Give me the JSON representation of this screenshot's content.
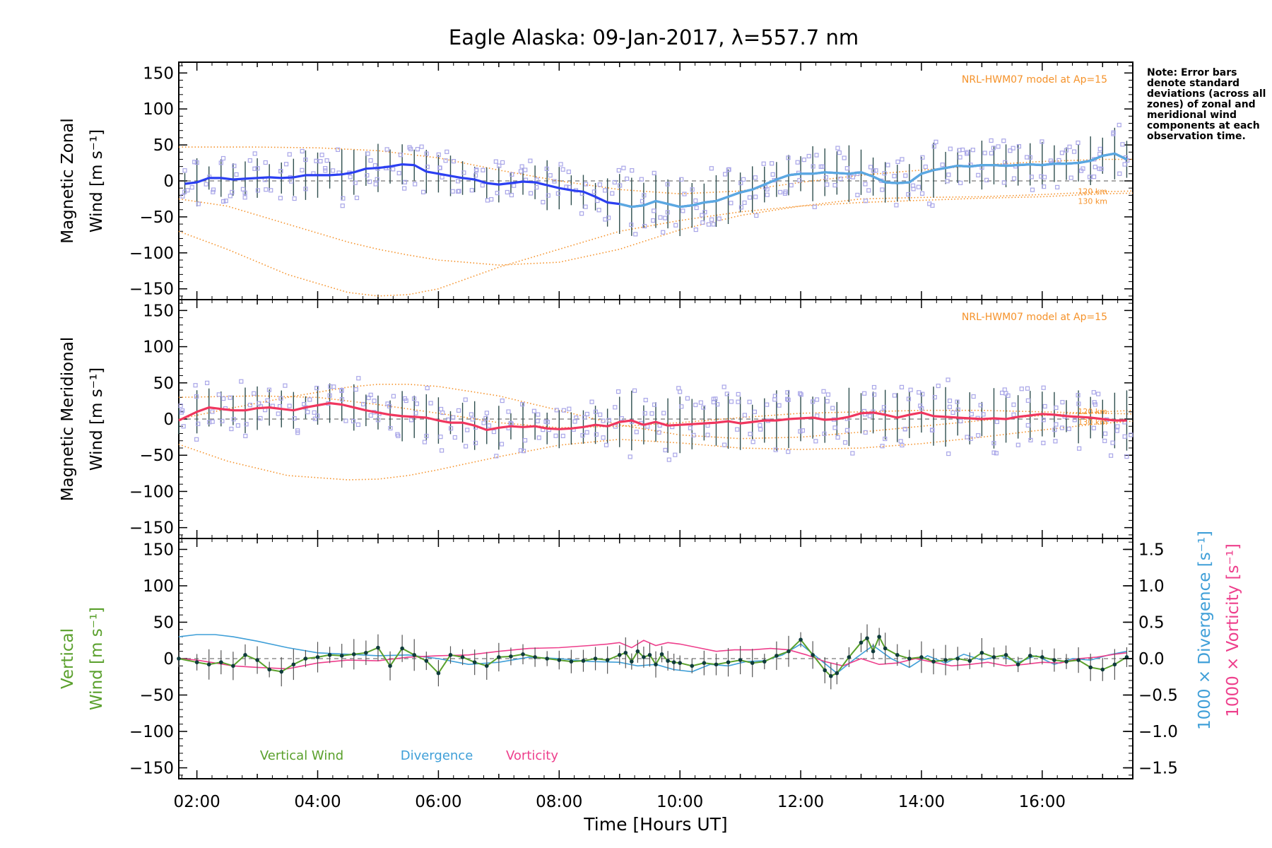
{
  "title": "Eagle Alaska: 09-Jan-2017, λ=557.7 nm",
  "note": "Note: Error bars denote standard deviations (across all zones) of zonal and meridional wind components at each observation time.",
  "colors": {
    "zonal": "#2b3ff2",
    "zonal_fit": "#5aa9e0",
    "meridional": "#f0365e",
    "model": "#f5922a",
    "scatter": "#a9a6e8",
    "errorbar": "#2f4f4f",
    "vertical": "#5aa02c",
    "divergence": "#3f9fd8",
    "vorticity": "#ee3f8c",
    "zero_line": "#777777",
    "vertical_points": "#0f3b3b"
  },
  "chart_data": [
    {
      "type": "line",
      "panel": "zonal",
      "title": "Eagle Alaska: 09-Jan-2017, λ=557.7 nm",
      "ylabel_line1": "Magnetic Zonal",
      "ylabel_line2": "Wind [m s⁻¹]",
      "xlabel": "",
      "xlim": [
        1.7,
        17.5
      ],
      "ylim": [
        -165,
        165
      ],
      "yticks": [
        "150",
        "100",
        "50",
        "0",
        "−50",
        "−100",
        "−150"
      ],
      "ytick_values": [
        150,
        100,
        50,
        0,
        -50,
        -100,
        -150
      ],
      "model_label": "NRL-HWM07 model at Ap=15",
      "model_level_labels": [
        "120 km",
        "130 km"
      ],
      "grid": false,
      "series": [
        {
          "role": "wind",
          "x": [
            1.8,
            2.0,
            2.2,
            2.4,
            2.6,
            2.8,
            3.0,
            3.2,
            3.4,
            3.6,
            3.8,
            4.0,
            4.2,
            4.4,
            4.6,
            4.8,
            5.0,
            5.2,
            5.4,
            5.6,
            5.8,
            6.0,
            6.2,
            6.4,
            6.6,
            6.8,
            7.0,
            7.2,
            7.4,
            7.6,
            7.8,
            8.0,
            8.2,
            8.4,
            8.6,
            8.8,
            9.0,
            9.2,
            9.4,
            9.6,
            9.8,
            10.0,
            10.2,
            10.4,
            10.6,
            10.8,
            11.0,
            11.2,
            11.4,
            11.6,
            11.8,
            12.0,
            12.2,
            12.4,
            12.6,
            12.8,
            13.0,
            13.2,
            13.4,
            13.6,
            13.8,
            14.0,
            14.2,
            14.4,
            14.6,
            14.8,
            15.0,
            15.2,
            15.4,
            15.6,
            15.8,
            16.0,
            16.2,
            16.4,
            16.6,
            16.8,
            17.0,
            17.2,
            17.4
          ],
          "y": [
            -4,
            -2,
            4,
            4,
            2,
            3,
            4,
            5,
            4,
            5,
            8,
            8,
            8,
            9,
            12,
            17,
            18,
            20,
            23,
            22,
            13,
            10,
            7,
            4,
            2,
            -3,
            -5,
            -3,
            -1,
            -2,
            -6,
            -10,
            -13,
            -15,
            -22,
            -30,
            -32,
            -36,
            -34,
            -28,
            -32,
            -36,
            -34,
            -30,
            -28,
            -22,
            -16,
            -12,
            -5,
            2,
            8,
            10,
            10,
            12,
            11,
            10,
            12,
            6,
            -2,
            -3,
            -2,
            10,
            15,
            18,
            21,
            20,
            22,
            22,
            21,
            22,
            23,
            22,
            24,
            24,
            25,
            28,
            35,
            38,
            30
          ]
        },
        {
          "role": "model_120km",
          "x": [
            1.7,
            2.5,
            3.5,
            4.5,
            5.0,
            5.5,
            6.0,
            7.0,
            8.0,
            9.0,
            10.0,
            11.0,
            12.0,
            13.0,
            14.0,
            15.0,
            16.0,
            17.0,
            17.5
          ],
          "y": [
            -25,
            -35,
            -60,
            -85,
            -95,
            -103,
            -110,
            -117,
            -113,
            -95,
            -68,
            -48,
            -35,
            -25,
            -23,
            -22,
            -19,
            -15,
            -14
          ]
        },
        {
          "role": "model_130km",
          "x": [
            1.7,
            2.5,
            3.5,
            4.5,
            5.0,
            5.5,
            6.0,
            7.0,
            8.0,
            9.0,
            10.0,
            11.0,
            12.0,
            13.0,
            14.0,
            15.0,
            16.0,
            17.0,
            17.5
          ],
          "y": [
            -70,
            -95,
            -130,
            -155,
            -160,
            -158,
            -150,
            -120,
            -95,
            -70,
            -55,
            -43,
            -35,
            -30,
            -27,
            -24,
            -22,
            -18,
            -17
          ]
        },
        {
          "role": "model_upper",
          "x": [
            1.7,
            3.0,
            4.0,
            5.0,
            6.0,
            7.0,
            8.0,
            9.0,
            10.0,
            11.0,
            12.0,
            13.0,
            14.0,
            15.0,
            16.0,
            17.0,
            17.5
          ],
          "y": [
            47,
            47,
            46,
            42,
            32,
            15,
            0,
            -12,
            -18,
            -14,
            -2,
            8,
            15,
            22,
            27,
            30,
            30
          ]
        }
      ]
    },
    {
      "type": "line",
      "panel": "meridional",
      "ylabel_line1": "Magnetic Meridional",
      "ylabel_line2": "Wind [m s⁻¹]",
      "xlabel": "",
      "xlim": [
        1.7,
        17.5
      ],
      "ylim": [
        -165,
        165
      ],
      "yticks": [
        "150",
        "100",
        "50",
        "0",
        "−50",
        "−100",
        "−150"
      ],
      "ytick_values": [
        150,
        100,
        50,
        0,
        -50,
        -100,
        -150
      ],
      "model_label": "NRL-HWM07 model at Ap=15",
      "model_level_labels": [
        "120 km",
        "130 km"
      ],
      "grid": false,
      "series": [
        {
          "role": "wind",
          "x": [
            1.7,
            2.0,
            2.2,
            2.4,
            2.6,
            2.8,
            3.0,
            3.2,
            3.4,
            3.6,
            3.8,
            4.0,
            4.2,
            4.4,
            4.6,
            4.8,
            5.0,
            5.2,
            5.4,
            5.6,
            5.8,
            6.0,
            6.2,
            6.4,
            6.6,
            6.8,
            7.0,
            7.2,
            7.4,
            7.6,
            7.8,
            8.0,
            8.2,
            8.4,
            8.6,
            8.8,
            9.0,
            9.2,
            9.4,
            9.6,
            9.8,
            10.0,
            10.2,
            10.4,
            10.6,
            10.8,
            11.0,
            11.2,
            11.4,
            11.6,
            11.8,
            12.0,
            12.2,
            12.4,
            12.6,
            12.8,
            13.0,
            13.2,
            13.4,
            13.6,
            13.8,
            14.0,
            14.2,
            14.4,
            14.6,
            14.8,
            15.0,
            15.2,
            15.4,
            15.6,
            15.8,
            16.0,
            16.2,
            16.4,
            16.6,
            16.8,
            17.0,
            17.2,
            17.4
          ],
          "y": [
            -2,
            10,
            16,
            14,
            12,
            12,
            15,
            16,
            14,
            12,
            16,
            19,
            22,
            20,
            16,
            12,
            9,
            6,
            4,
            3,
            2,
            -2,
            -5,
            -5,
            -9,
            -15,
            -12,
            -10,
            -11,
            -10,
            -13,
            -14,
            -13,
            -11,
            -8,
            -10,
            -4,
            -2,
            -8,
            -4,
            -9,
            -8,
            -7,
            -6,
            -5,
            -3,
            -6,
            -4,
            -2,
            -2,
            0,
            1,
            2,
            -1,
            0,
            3,
            8,
            9,
            6,
            2,
            6,
            9,
            4,
            3,
            2,
            1,
            0,
            1,
            0,
            3,
            5,
            7,
            6,
            4,
            3,
            2,
            0,
            -2,
            -2
          ]
        },
        {
          "role": "model_upper",
          "x": [
            1.7,
            2.5,
            3.5,
            4.5,
            5.0,
            5.5,
            6.0,
            7.0,
            8.0,
            9.0,
            10.0,
            11.0,
            12.0,
            13.0,
            14.0,
            15.0,
            16.0,
            17.0,
            17.5
          ],
          "y": [
            0,
            14,
            30,
            44,
            48,
            48,
            45,
            32,
            12,
            -8,
            -22,
            -27,
            -25,
            -18,
            -10,
            -2,
            5,
            10,
            12
          ]
        },
        {
          "role": "model_lower",
          "x": [
            1.7,
            2.5,
            3.5,
            4.5,
            5.0,
            5.5,
            6.0,
            7.0,
            8.0,
            9.0,
            10.0,
            11.0,
            12.0,
            13.0,
            14.0,
            15.0,
            16.0,
            17.0,
            17.5
          ],
          "y": [
            -35,
            -58,
            -78,
            -84,
            -83,
            -78,
            -70,
            -52,
            -36,
            -28,
            -33,
            -40,
            -42,
            -40,
            -34,
            -25,
            -15,
            -6,
            -3
          ]
        },
        {
          "role": "model_mid",
          "x": [
            1.7,
            3.0,
            4.0,
            5.0,
            6.0,
            7.0,
            8.0,
            9.0,
            10.0,
            11.0,
            12.0,
            13.0,
            14.0,
            15.0,
            16.0,
            17.0,
            17.5
          ],
          "y": [
            30,
            32,
            30,
            20,
            8,
            -5,
            -12,
            -10,
            -5,
            2,
            8,
            10,
            12,
            12,
            10,
            8,
            7
          ]
        }
      ]
    },
    {
      "type": "line",
      "panel": "vertical",
      "ylabel_line1": "Vertical",
      "ylabel_line2": "Wind [m s⁻¹]",
      "xlabel": "Time [Hours UT]",
      "xlim": [
        1.7,
        17.5
      ],
      "ylim": [
        -165,
        165
      ],
      "yticks": [
        "150",
        "100",
        "50",
        "0",
        "−50",
        "−100",
        "−150"
      ],
      "ytick_values": [
        150,
        100,
        50,
        0,
        -50,
        -100,
        -150
      ],
      "y2label_divergence": "1000 × Divergence [s⁻¹]",
      "y2label_vorticity": "1000 × Vorticity [s⁻¹]",
      "y2lim": [
        -1.65,
        1.65
      ],
      "y2ticks": [
        "1.5",
        "1.0",
        "0.5",
        "0.0",
        "−0.5",
        "−1.0",
        "−1.5"
      ],
      "y2tick_values": [
        1.5,
        1.0,
        0.5,
        0.0,
        -0.5,
        -1.0,
        -1.5
      ],
      "xticks": [
        "02:00",
        "04:00",
        "06:00",
        "08:00",
        "10:00",
        "12:00",
        "14:00",
        "16:00"
      ],
      "xtick_values": [
        2,
        4,
        6,
        8,
        10,
        12,
        14,
        16
      ],
      "legend": [
        "Vertical Wind",
        "Divergence",
        "Vorticity"
      ],
      "grid": false,
      "series": [
        {
          "name": "Vertical Wind",
          "axis": "left",
          "x": [
            1.7,
            2.0,
            2.2,
            2.4,
            2.6,
            2.8,
            3.0,
            3.2,
            3.4,
            3.6,
            3.8,
            4.0,
            4.2,
            4.4,
            4.6,
            4.8,
            5.0,
            5.2,
            5.4,
            5.6,
            5.8,
            6.0,
            6.2,
            6.4,
            6.6,
            6.8,
            7.0,
            7.2,
            7.4,
            7.6,
            7.8,
            8.0,
            8.2,
            8.4,
            8.6,
            8.8,
            9.0,
            9.1,
            9.2,
            9.3,
            9.4,
            9.5,
            9.6,
            9.7,
            9.8,
            9.9,
            10.0,
            10.2,
            10.4,
            10.6,
            10.8,
            11.0,
            11.2,
            11.4,
            11.6,
            11.8,
            12.0,
            12.2,
            12.4,
            12.5,
            12.6,
            12.8,
            13.0,
            13.1,
            13.2,
            13.3,
            13.4,
            13.6,
            13.8,
            14.0,
            14.2,
            14.4,
            14.6,
            14.8,
            15.0,
            15.2,
            15.4,
            15.6,
            15.8,
            16.0,
            16.2,
            16.4,
            16.6,
            16.8,
            17.0,
            17.2,
            17.4
          ],
          "y": [
            0,
            -5,
            -8,
            -5,
            -10,
            5,
            -2,
            -15,
            -18,
            -8,
            0,
            2,
            5,
            4,
            6,
            8,
            15,
            -10,
            14,
            5,
            -3,
            -20,
            5,
            2,
            -5,
            -10,
            2,
            3,
            6,
            2,
            0,
            -2,
            -4,
            -3,
            0,
            -2,
            5,
            8,
            -4,
            10,
            2,
            5,
            -8,
            6,
            -3,
            -5,
            -6,
            -10,
            -6,
            -8,
            -5,
            -2,
            -6,
            -4,
            4,
            10,
            26,
            5,
            -16,
            -24,
            -20,
            2,
            22,
            28,
            10,
            30,
            14,
            5,
            0,
            2,
            -4,
            -2,
            0,
            -3,
            8,
            2,
            5,
            -8,
            4,
            2,
            -2,
            -4,
            -2,
            -12,
            -15,
            -8,
            2
          ]
        },
        {
          "name": "Divergence",
          "axis": "right",
          "x": [
            1.7,
            2.0,
            2.3,
            2.6,
            3.0,
            3.5,
            4.0,
            4.5,
            5.0,
            5.5,
            6.0,
            6.5,
            7.0,
            7.5,
            8.0,
            8.5,
            9.0,
            9.3,
            9.6,
            9.9,
            10.2,
            10.5,
            10.8,
            11.1,
            11.4,
            11.7,
            12.0,
            12.3,
            12.6,
            12.9,
            13.2,
            13.5,
            13.8,
            14.1,
            14.4,
            14.7,
            15.0,
            15.3,
            15.6,
            15.9,
            16.2,
            16.5,
            16.8,
            17.1,
            17.4
          ],
          "y": [
            0.3,
            0.33,
            0.33,
            0.3,
            0.24,
            0.15,
            0.08,
            0.06,
            0.04,
            0.05,
            0.0,
            -0.08,
            -0.05,
            0.02,
            0.0,
            -0.04,
            -0.05,
            -0.1,
            -0.08,
            -0.15,
            -0.18,
            -0.08,
            -0.1,
            -0.04,
            -0.03,
            0.05,
            0.2,
            0.0,
            -0.2,
            0.0,
            0.18,
            0.0,
            -0.12,
            0.04,
            -0.06,
            0.06,
            -0.02,
            0.04,
            -0.05,
            0.04,
            -0.08,
            0.0,
            -0.02,
            0.05,
            0.1
          ]
        },
        {
          "name": "Vorticity",
          "axis": "right",
          "x": [
            1.7,
            2.0,
            2.3,
            2.6,
            3.0,
            3.5,
            4.0,
            4.5,
            5.0,
            5.5,
            6.0,
            6.5,
            7.0,
            7.5,
            8.0,
            8.5,
            8.8,
            9.0,
            9.2,
            9.4,
            9.6,
            9.8,
            10.0,
            10.3,
            10.6,
            10.9,
            11.2,
            11.5,
            11.8,
            12.1,
            12.4,
            12.7,
            13.0,
            13.3,
            13.6,
            13.9,
            14.2,
            14.5,
            14.8,
            15.1,
            15.4,
            15.7,
            16.0,
            16.3,
            16.6,
            16.9,
            17.2,
            17.4
          ],
          "y": [
            0.0,
            -0.02,
            -0.06,
            -0.1,
            -0.12,
            -0.14,
            -0.06,
            -0.02,
            -0.03,
            0.02,
            0.04,
            0.05,
            0.1,
            0.14,
            0.15,
            0.18,
            0.2,
            0.22,
            0.15,
            0.25,
            0.18,
            0.22,
            0.2,
            0.15,
            0.1,
            0.12,
            0.12,
            0.14,
            0.12,
            0.05,
            -0.04,
            -0.1,
            0.0,
            -0.08,
            -0.06,
            0.0,
            -0.05,
            -0.1,
            -0.08,
            -0.05,
            -0.1,
            -0.08,
            -0.05,
            -0.06,
            0.0,
            0.02,
            0.06,
            0.08
          ]
        }
      ]
    }
  ]
}
